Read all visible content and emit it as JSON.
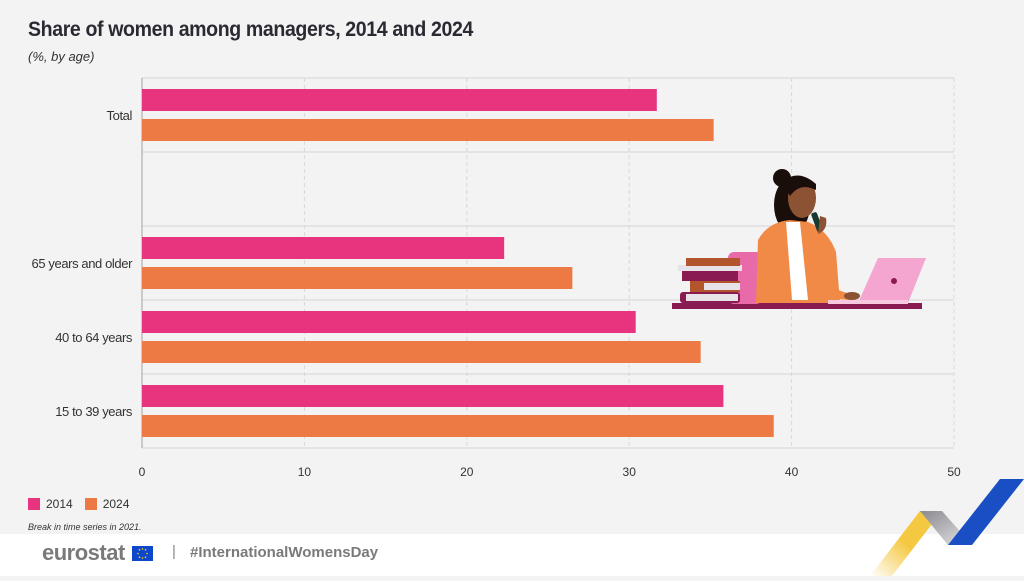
{
  "header": {
    "title": "Share of women among managers, 2014 and 2024",
    "subtitle": "(%, by age)"
  },
  "chart_data": {
    "type": "bar",
    "orientation": "horizontal",
    "title": "Share of women among managers, 2014 and 2024",
    "subtitle": "(%, by age)",
    "xlabel": "",
    "ylabel": "",
    "xlim": [
      0,
      50
    ],
    "xticks": [
      0,
      10,
      20,
      30,
      40,
      50
    ],
    "grid": true,
    "categories": [
      "Total",
      "",
      "65 years and older",
      "40 to 64 years",
      "15 to 39 years"
    ],
    "series": [
      {
        "name": "2014",
        "color": "#e8347f",
        "values": [
          31.7,
          null,
          22.3,
          30.4,
          35.8
        ]
      },
      {
        "name": "2024",
        "color": "#ed7a45",
        "values": [
          35.2,
          null,
          26.5,
          34.4,
          38.9
        ]
      }
    ],
    "legend_position": "bottom-left"
  },
  "legend": {
    "items": [
      {
        "label": "2014",
        "color": "#e8347f"
      },
      {
        "label": "2024",
        "color": "#ed7a45"
      }
    ]
  },
  "note": "Break in time series in 2021.",
  "footer": {
    "logo": "eurostat",
    "separator": "|",
    "hashtag": "#InternationalWomensDay"
  },
  "colors": {
    "background": "#f3f3f3",
    "grid": "#d4d4d4",
    "ribbon_yellow": "#f5c842",
    "ribbon_blue": "#1a4fc4",
    "ribbon_grey": "#a7a7aa"
  }
}
